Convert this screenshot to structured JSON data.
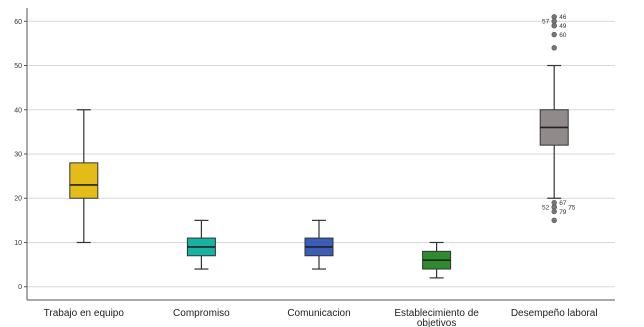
{
  "chart_data": {
    "type": "boxplot",
    "title": "",
    "xlabel": "",
    "ylabel": "",
    "ylim": [
      -3,
      63
    ],
    "yticks": [
      0,
      10,
      20,
      30,
      40,
      50,
      60
    ],
    "grid": "horizontal",
    "categories": [
      {
        "label": "Trabajo en equipo",
        "label_lines": [
          "Trabajo en equipo"
        ],
        "color": "#E3BC1A",
        "min": 10,
        "q1": 20,
        "median": 23,
        "q3": 28,
        "max": 40,
        "outliers": []
      },
      {
        "label": "Compromiso",
        "label_lines": [
          "Compromiso"
        ],
        "color": "#17B3A0",
        "min": 4,
        "q1": 7,
        "median": 9,
        "q3": 11,
        "max": 15,
        "outliers": []
      },
      {
        "label": "Comunicacion",
        "label_lines": [
          "Comunicacion"
        ],
        "color": "#3B5DB8",
        "min": 4,
        "q1": 7,
        "median": 9,
        "q3": 11,
        "max": 15,
        "outliers": []
      },
      {
        "label": "Establecimiento de objetivos",
        "label_lines": [
          "Establecimiento de",
          "objetivos"
        ],
        "color": "#2E8B2E",
        "min": 2,
        "q1": 4,
        "median": 6,
        "q3": 8,
        "max": 10,
        "outliers": []
      },
      {
        "label": "Desempeño laboral",
        "label_lines": [
          "Desempeño laboral"
        ],
        "color": "#918A8A",
        "min": 20,
        "q1": 32,
        "median": 36,
        "q3": 40,
        "max": 50,
        "outliers": [
          {
            "value": 61,
            "label": "46"
          },
          {
            "value": 60,
            "label": "57"
          },
          {
            "value": 59,
            "label": "49"
          },
          {
            "value": 57,
            "label": "60"
          },
          {
            "value": 54,
            "label": ""
          },
          {
            "value": 19,
            "label": "67"
          },
          {
            "value": 18,
            "label": "52"
          },
          {
            "value": 18,
            "label": "75"
          },
          {
            "value": 17,
            "label": "79"
          },
          {
            "value": 15,
            "label": ""
          }
        ]
      }
    ]
  }
}
